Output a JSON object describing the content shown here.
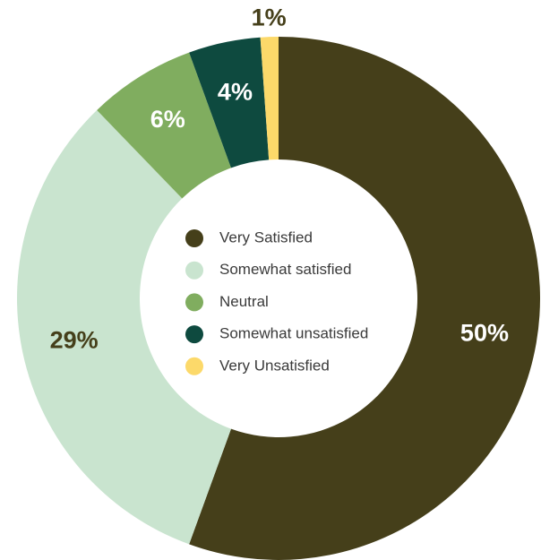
{
  "chart_data": {
    "type": "donut",
    "categories": [
      "Very Satisfied",
      "Somewhat satisfied",
      "Neutral",
      "Somewhat unsatisfied",
      "Very Unsatisfied"
    ],
    "values": [
      50,
      29,
      6,
      4,
      1
    ],
    "value_labels": [
      "50%",
      "29%",
      "6%",
      "4%",
      "1%"
    ],
    "colors": [
      "#453f1a",
      "#c9e4cf",
      "#80ad5f",
      "#0e4a3f",
      "#fcd96a"
    ],
    "legend": "center"
  }
}
